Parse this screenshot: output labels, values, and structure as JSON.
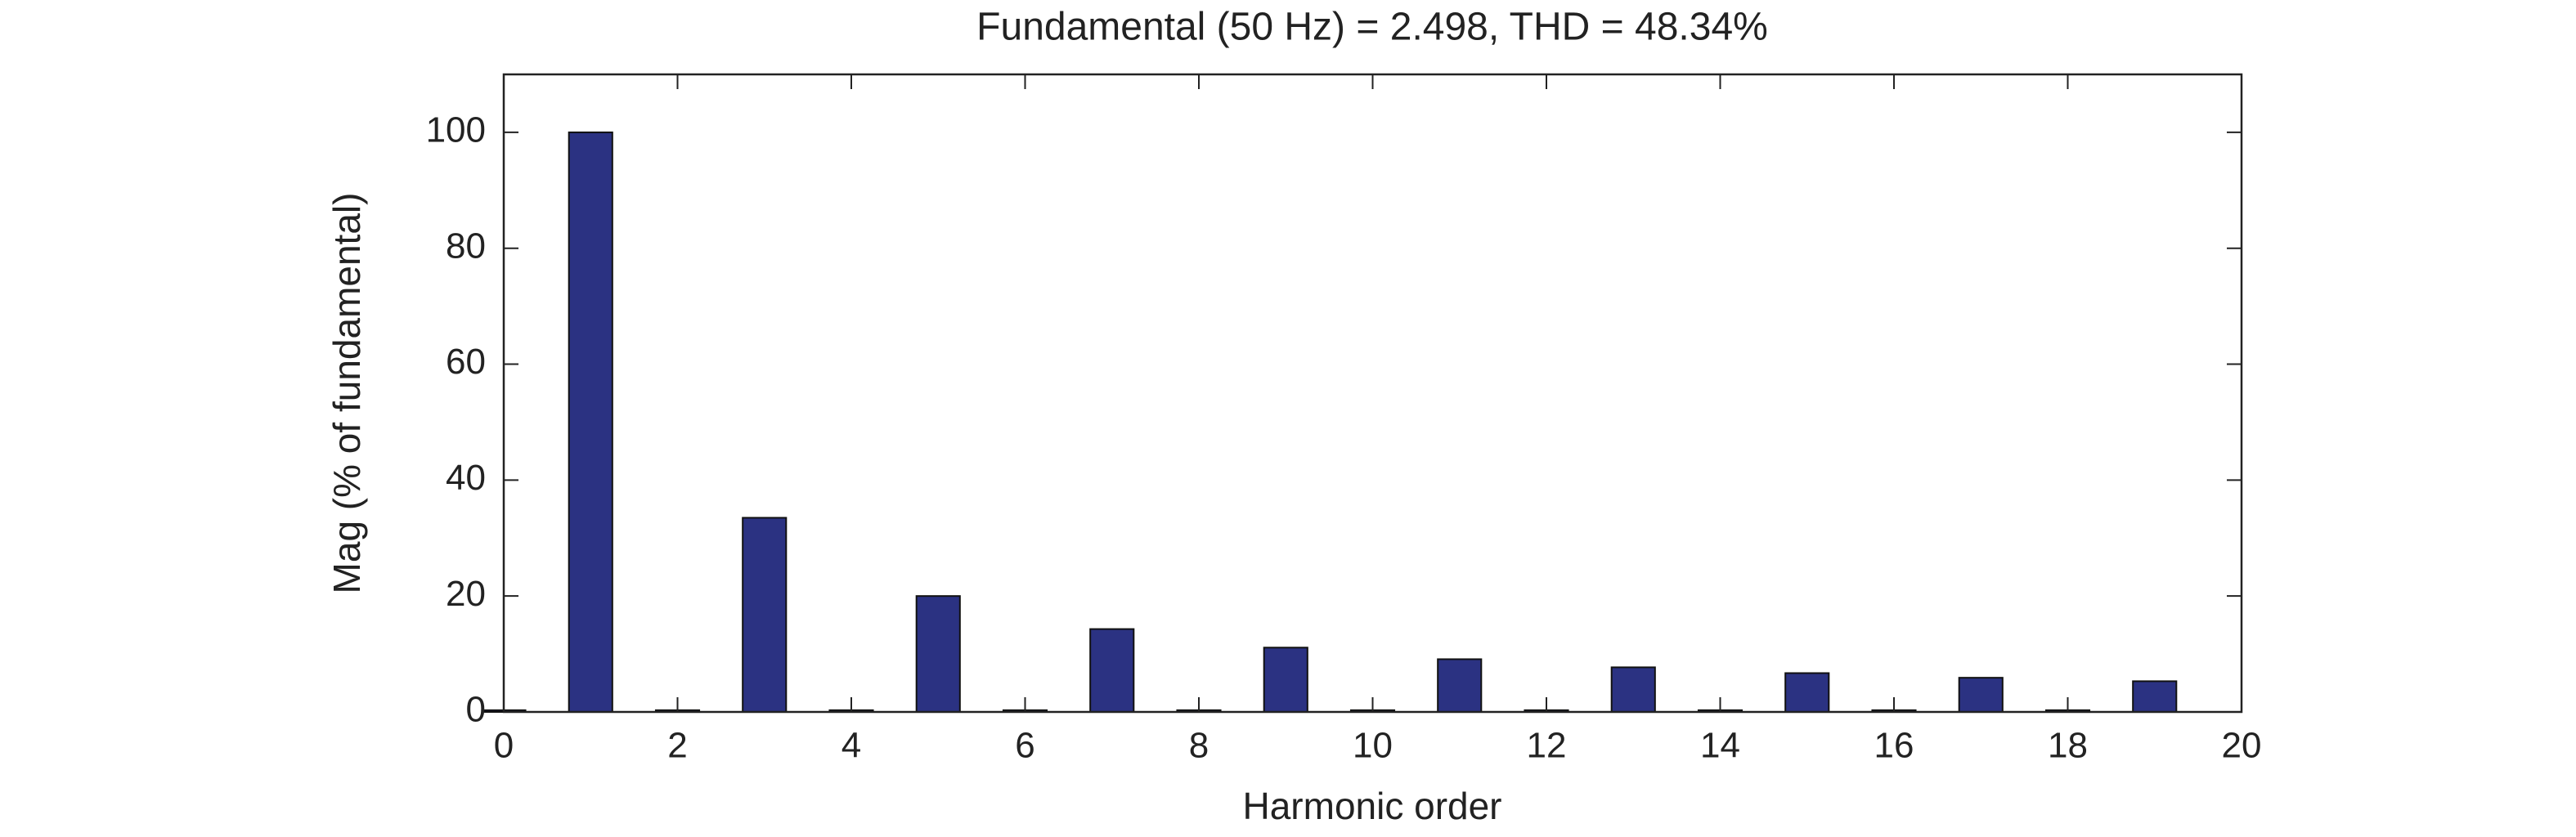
{
  "chart_data": {
    "type": "bar",
    "title": "Fundamental (50 Hz) = 2.498, THD = 48.34%",
    "x_label": "Harmonic order",
    "y_label": "Mag (% of fundamental)",
    "x": [
      0,
      1,
      2,
      3,
      4,
      5,
      6,
      7,
      8,
      9,
      10,
      11,
      12,
      13,
      14,
      15,
      16,
      17,
      18,
      19
    ],
    "values": [
      0.3,
      100,
      0.3,
      33.5,
      0.3,
      20,
      0.3,
      14.3,
      0.3,
      11.1,
      0.3,
      9.1,
      0.3,
      7.7,
      0.3,
      6.7,
      0.3,
      5.9,
      0.3,
      5.3
    ],
    "color": "#2b3282",
    "xlim": [
      0,
      20
    ],
    "xticks": [
      0,
      2,
      4,
      6,
      8,
      10,
      12,
      14,
      16,
      18,
      20
    ],
    "ylim": [
      0,
      110
    ],
    "yticks": [
      0,
      20,
      40,
      60,
      80,
      100
    ],
    "grid": false
  }
}
